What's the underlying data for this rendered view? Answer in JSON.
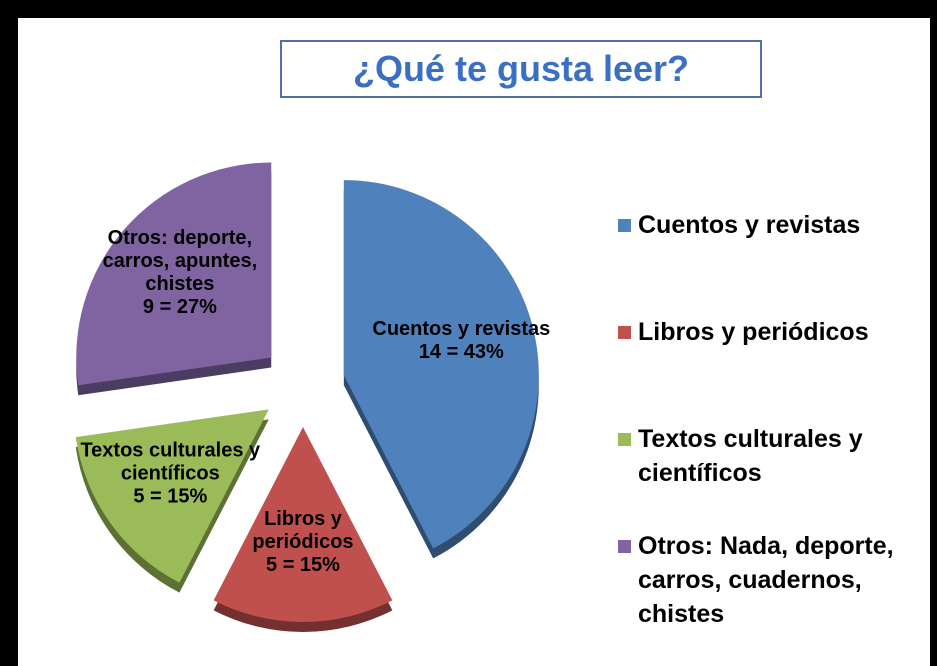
{
  "chart_data": {
    "type": "pie",
    "title": "¿Qué te gusta leer?",
    "categories": [
      "Cuentos y revistas",
      "Libros y periódicos",
      "Textos culturales y  científicos",
      "Otros: Nada, deporte, carros, cuadernos, chistes"
    ],
    "values": [
      14,
      5,
      5,
      9
    ],
    "value_labels": [
      "14 = 43%",
      "5 = 15%",
      "5 = 15%",
      "9 = 27%"
    ],
    "label_names": [
      [
        "Cuentos y revistas"
      ],
      [
        "Libros y",
        "periódicos"
      ],
      [
        "Textos culturales y",
        "científicos"
      ],
      [
        "Otros: deporte,",
        "carros, apuntes,",
        "chistes"
      ]
    ],
    "colors": [
      "#4f81bd",
      "#c0504d",
      "#9bbb59",
      "#8064a2"
    ],
    "legend": "right"
  }
}
